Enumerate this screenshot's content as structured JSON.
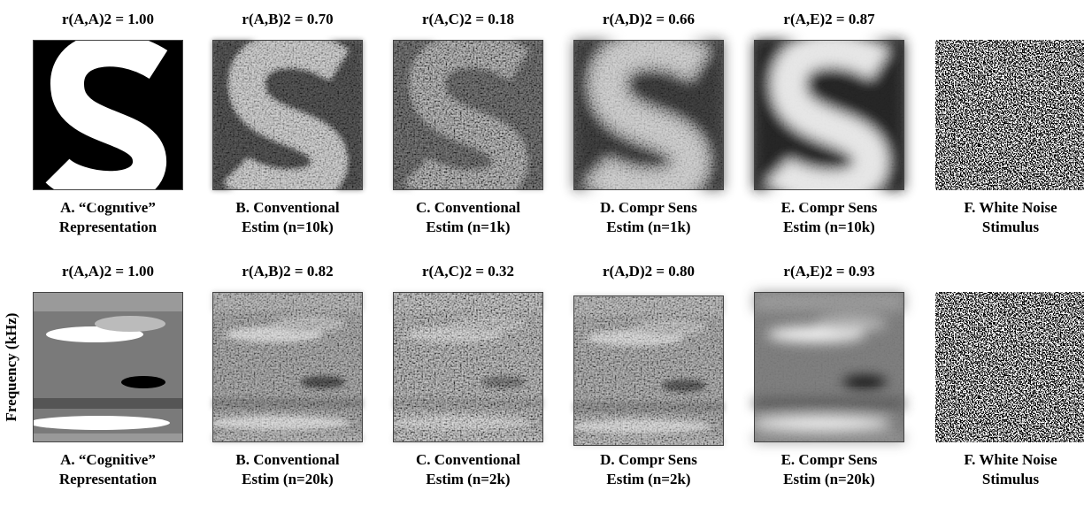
{
  "rows": [
    {
      "panels": [
        {
          "title": "r(A,A)2 = 1.00",
          "caption": [
            "A. “Cognitive”",
            "Representation"
          ]
        },
        {
          "title": "r(A,B)2 = 0.70",
          "caption": [
            "B. Conventional",
            "Estim (n=10k)"
          ]
        },
        {
          "title": "r(A,C)2 = 0.18",
          "caption": [
            "C. Conventional",
            "Estim (n=1k)"
          ]
        },
        {
          "title": "r(A,D)2 = 0.66",
          "caption": [
            "D. Compr Sens",
            "Estim (n=1k)"
          ]
        },
        {
          "title": "r(A,E)2 = 0.87",
          "caption": [
            "E. Compr Sens",
            "Estim (n=10k)"
          ]
        },
        {
          "caption": [
            "F. White Noise",
            "Stimulus"
          ]
        }
      ]
    },
    {
      "panels": [
        {
          "title": "r(A,A)2 = 1.00",
          "caption": [
            "A. “Cognitive”",
            "Representation"
          ]
        },
        {
          "title": "r(A,B)2 = 0.82",
          "caption": [
            "B. Conventional",
            "Estim (n=20k)"
          ]
        },
        {
          "title": "r(A,C)2 = 0.32",
          "caption": [
            "C. Conventional",
            "Estim (n=2k)"
          ]
        },
        {
          "title": "r(A,D)2 = 0.80",
          "caption": [
            "D. Compr Sens",
            "Estim (n=2k)"
          ]
        },
        {
          "title": "r(A,E)2 = 0.93",
          "caption": [
            "E. Compr Sens",
            "Estim (n=20k)"
          ]
        },
        {
          "caption": [
            "F. White Noise",
            "Stimulus"
          ]
        }
      ]
    }
  ],
  "y_axis_label": "Frequency (kHz)"
}
